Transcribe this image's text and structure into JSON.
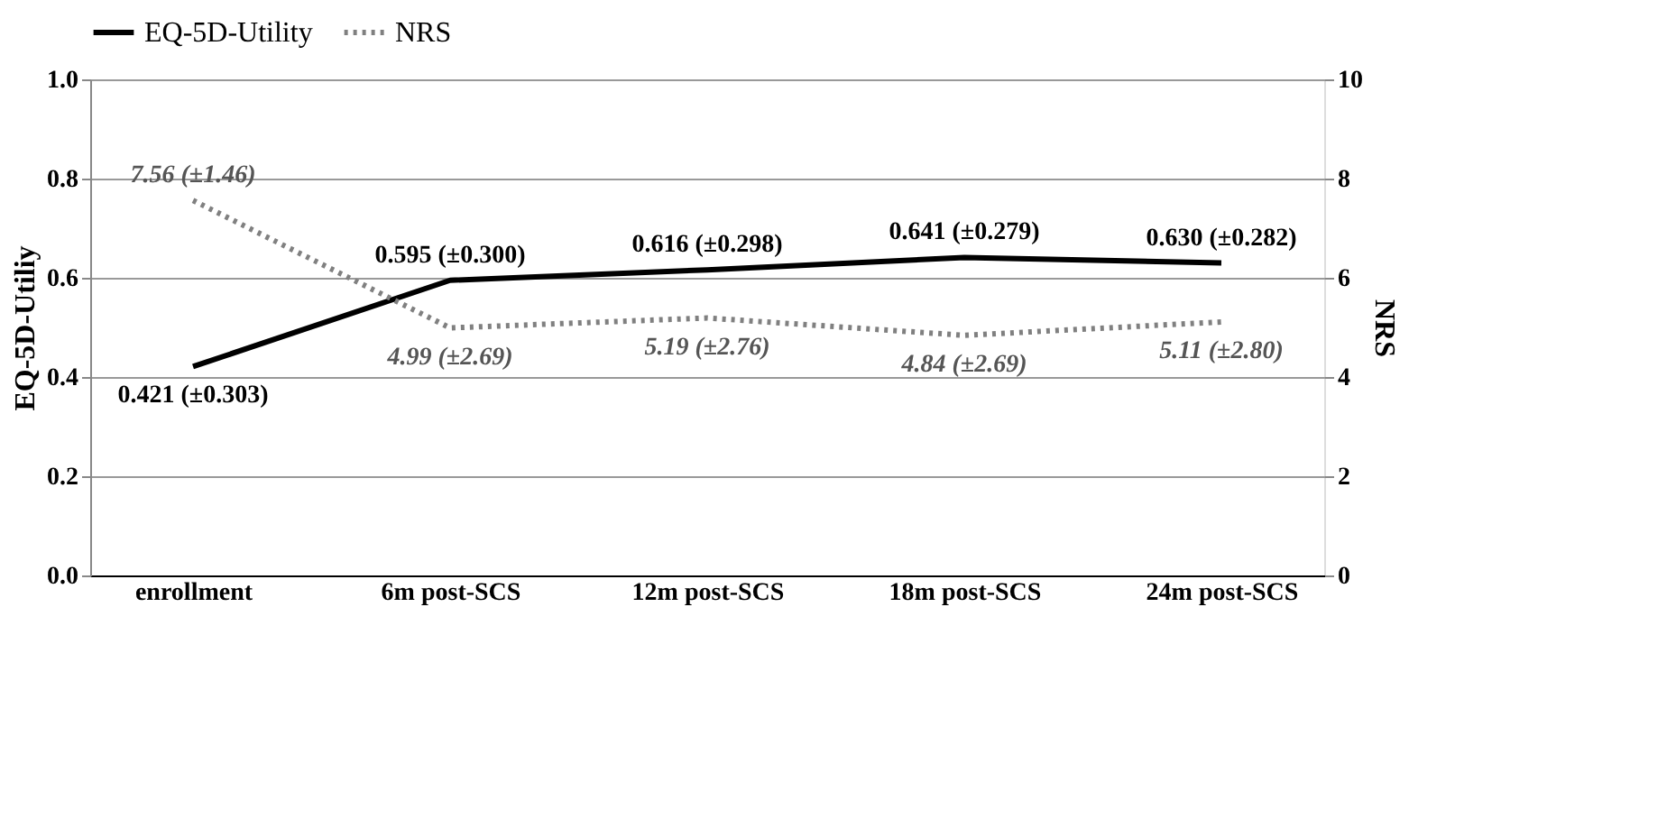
{
  "chart_data": {
    "type": "line",
    "ylabel": "EQ-5D-Utiliy",
    "y2label": "NRS",
    "categories": [
      "enrollment",
      "6m post-SCS",
      "12m post-SCS",
      "18m post-SCS",
      "24m post-SCS"
    ],
    "series": [
      {
        "name": "EQ-5D-Utility",
        "color": "#000000",
        "line_style": "solid",
        "values": [
          0.421,
          0.595,
          0.616,
          0.641,
          0.63
        ],
        "value_labels": [
          "0.421 (±0.303)",
          "0.595 (±0.300)",
          "0.616 (±0.298)",
          "0.641 (±0.279)",
          "0.630 (±0.282)"
        ]
      },
      {
        "name": "NRS",
        "color": "#808080",
        "line_style": "dotted",
        "axis": "y2",
        "values": [
          7.56,
          4.99,
          5.19,
          4.84,
          5.11
        ],
        "value_labels": [
          "7.56 (±1.46)",
          "4.99 (±2.69)",
          "5.19 (±2.76)",
          "4.84 (±2.69)",
          "5.11 (±2.80)"
        ]
      }
    ],
    "ylim": [
      0,
      1.0
    ],
    "yticks": [
      {
        "value": 0,
        "label": "0.0"
      },
      0.2,
      0.4,
      0.6,
      0.8,
      {
        "value": 1.0,
        "label": "1.0"
      }
    ],
    "y2lim": [
      0,
      10
    ],
    "y2ticks": [
      0,
      2,
      4,
      6,
      8,
      10
    ],
    "grid": "y",
    "legend": "top",
    "marker": "none"
  }
}
